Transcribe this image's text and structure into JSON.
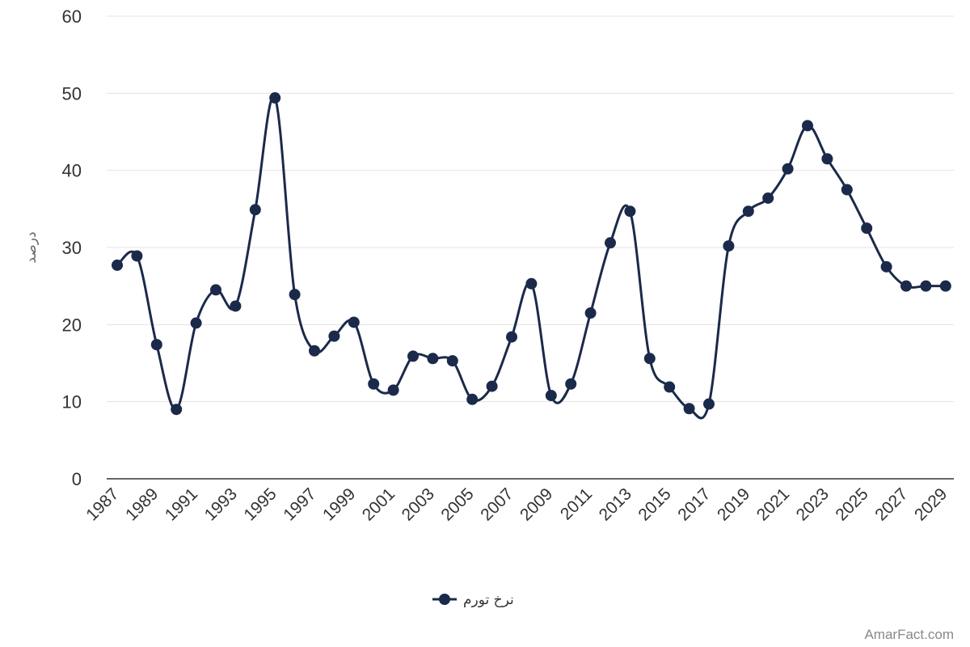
{
  "chart_data": {
    "type": "line",
    "ylabel": "درصد",
    "xlabel": "",
    "ylim": [
      0,
      60
    ],
    "yticks": [
      0,
      10,
      20,
      30,
      40,
      50,
      60
    ],
    "x": [
      1987,
      1988,
      1989,
      1990,
      1991,
      1992,
      1993,
      1994,
      1995,
      1996,
      1997,
      1998,
      1999,
      2000,
      2001,
      2002,
      2003,
      2004,
      2005,
      2006,
      2007,
      2008,
      2009,
      2010,
      2011,
      2012,
      2013,
      2014,
      2015,
      2016,
      2017,
      2018,
      2019,
      2020,
      2021,
      2022,
      2023,
      2024,
      2025,
      2026,
      2027,
      2028,
      2029
    ],
    "xtick_labels": [
      "1987",
      "1989",
      "1991",
      "1993",
      "1995",
      "1997",
      "1999",
      "2001",
      "2003",
      "2005",
      "2007",
      "2009",
      "2011",
      "2013",
      "2015",
      "2017",
      "2019",
      "2021",
      "2023",
      "2025",
      "2027",
      "2029"
    ],
    "series": [
      {
        "name": "نرخ تورم",
        "color": "#1b2a4a",
        "values": [
          27.7,
          28.9,
          17.4,
          9.0,
          20.2,
          24.5,
          22.4,
          34.9,
          49.4,
          23.9,
          16.6,
          18.5,
          20.3,
          12.3,
          11.5,
          15.9,
          15.6,
          15.3,
          10.3,
          12.0,
          18.4,
          25.3,
          10.8,
          12.3,
          21.5,
          30.6,
          34.7,
          15.6,
          11.9,
          9.1,
          9.7,
          30.2,
          34.7,
          36.4,
          40.2,
          45.8,
          41.5,
          37.5,
          32.5,
          27.5,
          25.0,
          25.0,
          25.0
        ]
      }
    ],
    "grid": true,
    "legend_position": "bottom-center"
  },
  "watermark": "AmarFact.com",
  "colors": {
    "grid": "#e3e3e3",
    "axis": "#333333",
    "line": "#1b2a4a"
  }
}
